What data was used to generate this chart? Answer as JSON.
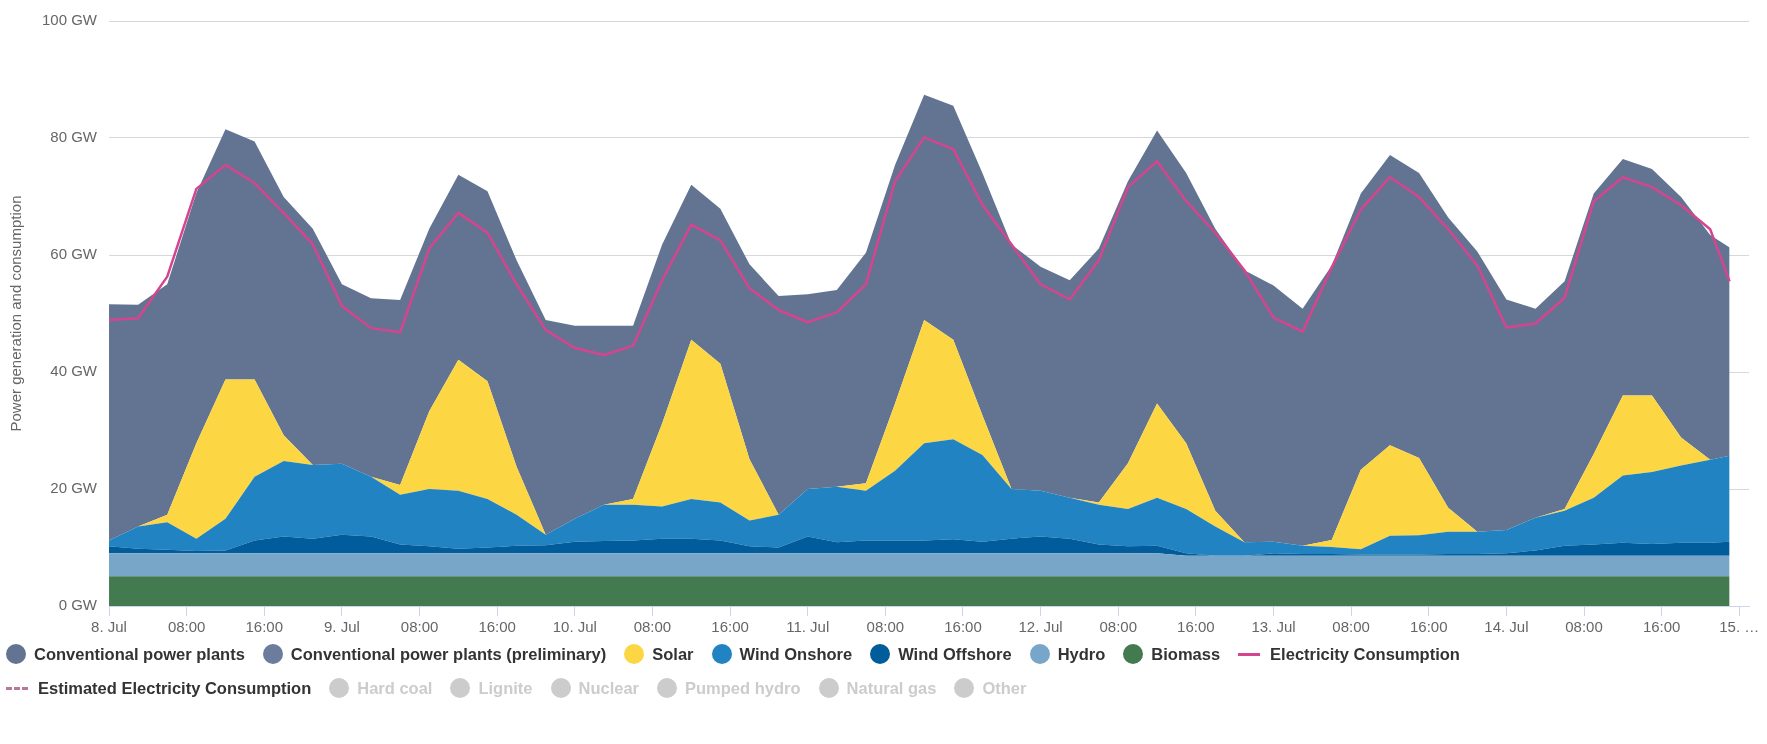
{
  "chart_data": {
    "type": "area",
    "stacked": true,
    "ylabel": "Power generation and consumption",
    "grid": "y",
    "legend": "bottom",
    "marker": "none",
    "x": [
      "--07-08T00:00",
      "--07-08T03:00",
      "--07-08T06:00",
      "--07-08T09:00",
      "--07-08T12:00",
      "--07-08T15:00",
      "--07-08T18:00",
      "--07-08T21:00",
      "--07-09T00:00",
      "--07-09T03:00",
      "--07-09T06:00",
      "--07-09T09:00",
      "--07-09T12:00",
      "--07-09T15:00",
      "--07-09T18:00",
      "--07-09T21:00",
      "--07-10T00:00",
      "--07-10T03:00",
      "--07-10T06:00",
      "--07-10T09:00",
      "--07-10T12:00",
      "--07-10T15:00",
      "--07-10T18:00",
      "--07-10T21:00",
      "--07-11T00:00",
      "--07-11T03:00",
      "--07-11T06:00",
      "--07-11T09:00",
      "--07-11T12:00",
      "--07-11T15:00",
      "--07-11T18:00",
      "--07-11T21:00",
      "--07-12T00:00",
      "--07-12T03:00",
      "--07-12T06:00",
      "--07-12T09:00",
      "--07-12T12:00",
      "--07-12T15:00",
      "--07-12T18:00",
      "--07-12T21:00",
      "--07-13T00:00",
      "--07-13T03:00",
      "--07-13T06:00",
      "--07-13T09:00",
      "--07-13T12:00",
      "--07-13T15:00",
      "--07-13T18:00",
      "--07-13T21:00",
      "--07-14T00:00",
      "--07-14T03:00",
      "--07-14T06:00",
      "--07-14T09:00",
      "--07-14T12:00",
      "--07-14T15:00",
      "--07-14T18:00",
      "--07-14T21:00",
      "--07-14T23:00"
    ],
    "xlim": [
      "--07-08T00:00",
      "--07-15T01:00"
    ],
    "xticks": [
      {
        "value": "--07-08T00:00",
        "label": "8. Jul"
      },
      {
        "value": "--07-08T08:00",
        "label": "08:00"
      },
      {
        "value": "--07-08T16:00",
        "label": "16:00"
      },
      {
        "value": "--07-09T00:00",
        "label": "9. Jul"
      },
      {
        "value": "--07-09T08:00",
        "label": "08:00"
      },
      {
        "value": "--07-09T16:00",
        "label": "16:00"
      },
      {
        "value": "--07-10T00:00",
        "label": "10. Jul"
      },
      {
        "value": "--07-10T08:00",
        "label": "08:00"
      },
      {
        "value": "--07-10T16:00",
        "label": "16:00"
      },
      {
        "value": "--07-11T00:00",
        "label": "11. Jul"
      },
      {
        "value": "--07-11T08:00",
        "label": "08:00"
      },
      {
        "value": "--07-11T16:00",
        "label": "16:00"
      },
      {
        "value": "--07-12T00:00",
        "label": "12. Jul"
      },
      {
        "value": "--07-12T08:00",
        "label": "08:00"
      },
      {
        "value": "--07-12T16:00",
        "label": "16:00"
      },
      {
        "value": "--07-13T00:00",
        "label": "13. Jul"
      },
      {
        "value": "--07-13T08:00",
        "label": "08:00"
      },
      {
        "value": "--07-13T16:00",
        "label": "16:00"
      },
      {
        "value": "--07-14T00:00",
        "label": "14. Jul"
      },
      {
        "value": "--07-14T08:00",
        "label": "08:00"
      },
      {
        "value": "--07-14T16:00",
        "label": "16:00"
      },
      {
        "value": "--07-15T00:00",
        "label": "15. …"
      }
    ],
    "ylim": [
      0,
      100
    ],
    "yticks": [
      {
        "value": 0,
        "label": "0 GW"
      },
      {
        "value": 20,
        "label": "20 GW"
      },
      {
        "value": 40,
        "label": "40 GW"
      },
      {
        "value": 60,
        "label": "60 GW"
      },
      {
        "value": 80,
        "label": "80 GW"
      },
      {
        "value": 100,
        "label": "100 GW"
      }
    ],
    "series": [
      {
        "name": "Other",
        "type": "area",
        "color": "#cccccc",
        "values": [
          null,
          null,
          null,
          null,
          null,
          null,
          null,
          null,
          null,
          null,
          null,
          null,
          null,
          null,
          null,
          null,
          null,
          null,
          null,
          null,
          null,
          null,
          null,
          null,
          null,
          null,
          null,
          null,
          null,
          null,
          null,
          null,
          null,
          null,
          null,
          null,
          null,
          null,
          null,
          null,
          null,
          null,
          null,
          null,
          null,
          null,
          null,
          null,
          null,
          null,
          null,
          null,
          null,
          null,
          null,
          null,
          null
        ]
      },
      {
        "name": "Natural gas",
        "type": "area",
        "color": "#cccccc",
        "values": [
          null,
          null,
          null,
          null,
          null,
          null,
          null,
          null,
          null,
          null,
          null,
          null,
          null,
          null,
          null,
          null,
          null,
          null,
          null,
          null,
          null,
          null,
          null,
          null,
          null,
          null,
          null,
          null,
          null,
          null,
          null,
          null,
          null,
          null,
          null,
          null,
          null,
          null,
          null,
          null,
          null,
          null,
          null,
          null,
          null,
          null,
          null,
          null,
          null,
          null,
          null,
          null,
          null,
          null,
          null,
          null,
          null
        ]
      },
      {
        "name": "Pumped hydro",
        "type": "area",
        "color": "#cccccc",
        "values": [
          null,
          null,
          null,
          null,
          null,
          null,
          null,
          null,
          null,
          null,
          null,
          null,
          null,
          null,
          null,
          null,
          null,
          null,
          null,
          null,
          null,
          null,
          null,
          null,
          null,
          null,
          null,
          null,
          null,
          null,
          null,
          null,
          null,
          null,
          null,
          null,
          null,
          null,
          null,
          null,
          null,
          null,
          null,
          null,
          null,
          null,
          null,
          null,
          null,
          null,
          null,
          null,
          null,
          null,
          null,
          null,
          null
        ]
      },
      {
        "name": "Nuclear",
        "type": "area",
        "color": "#cccccc",
        "values": [
          null,
          null,
          null,
          null,
          null,
          null,
          null,
          null,
          null,
          null,
          null,
          null,
          null,
          null,
          null,
          null,
          null,
          null,
          null,
          null,
          null,
          null,
          null,
          null,
          null,
          null,
          null,
          null,
          null,
          null,
          null,
          null,
          null,
          null,
          null,
          null,
          null,
          null,
          null,
          null,
          null,
          null,
          null,
          null,
          null,
          null,
          null,
          null,
          null,
          null,
          null,
          null,
          null,
          null,
          null,
          null,
          null
        ]
      },
      {
        "name": "Lignite",
        "type": "area",
        "color": "#cccccc",
        "values": [
          null,
          null,
          null,
          null,
          null,
          null,
          null,
          null,
          null,
          null,
          null,
          null,
          null,
          null,
          null,
          null,
          null,
          null,
          null,
          null,
          null,
          null,
          null,
          null,
          null,
          null,
          null,
          null,
          null,
          null,
          null,
          null,
          null,
          null,
          null,
          null,
          null,
          null,
          null,
          null,
          null,
          null,
          null,
          null,
          null,
          null,
          null,
          null,
          null,
          null,
          null,
          null,
          null,
          null,
          null,
          null,
          null
        ]
      },
      {
        "name": "Hard coal",
        "type": "area",
        "color": "#cccccc",
        "values": [
          null,
          null,
          null,
          null,
          null,
          null,
          null,
          null,
          null,
          null,
          null,
          null,
          null,
          null,
          null,
          null,
          null,
          null,
          null,
          null,
          null,
          null,
          null,
          null,
          null,
          null,
          null,
          null,
          null,
          null,
          null,
          null,
          null,
          null,
          null,
          null,
          null,
          null,
          null,
          null,
          null,
          null,
          null,
          null,
          null,
          null,
          null,
          null,
          null,
          null,
          null,
          null,
          null,
          null,
          null,
          null,
          null
        ]
      },
      {
        "name": "Estimated Electricity Consumption",
        "type": "line",
        "line_style": "dashed",
        "color": "#b9779e",
        "values": [
          null,
          null,
          null,
          null,
          null,
          null,
          null,
          null,
          null,
          null,
          null,
          null,
          null,
          null,
          null,
          null,
          null,
          null,
          null,
          null,
          null,
          null,
          null,
          null,
          null,
          null,
          null,
          null,
          null,
          null,
          null,
          null,
          null,
          null,
          null,
          null,
          null,
          null,
          null,
          null,
          null,
          null,
          null,
          null,
          null,
          null,
          null,
          null,
          null,
          null,
          null,
          null,
          null,
          null,
          null,
          null,
          null
        ]
      },
      {
        "name": "Electricity Consumption",
        "type": "line",
        "line_style": "solid",
        "color": "#d5458f",
        "values": [
          48.9,
          49.2,
          56.3,
          71.3,
          75.4,
          72.3,
          67.2,
          61.8,
          51.3,
          47.5,
          46.8,
          61.1,
          67.2,
          63.8,
          55.0,
          47.2,
          44.1,
          42.9,
          44.5,
          55.7,
          65.2,
          62.5,
          54.3,
          50.6,
          48.5,
          50.2,
          55.0,
          72.6,
          80.1,
          78.1,
          68.6,
          61.8,
          55.0,
          52.4,
          59.1,
          71.6,
          76.0,
          69.2,
          63.8,
          57.4,
          49.3,
          46.9,
          57.9,
          67.8,
          73.3,
          69.9,
          64.4,
          58.2,
          47.6,
          48.3,
          52.7,
          69.2,
          73.3,
          71.6,
          68.5,
          64.4,
          55.5
        ]
      },
      {
        "name": "Biomass",
        "color": "#447a50",
        "values": [
          5.1,
          5.1,
          5.1,
          5.1,
          5.1,
          5.1,
          5.1,
          5.1,
          5.1,
          5.1,
          5.1,
          5.1,
          5.1,
          5.1,
          5.1,
          5.1,
          5.1,
          5.1,
          5.1,
          5.1,
          5.1,
          5.1,
          5.1,
          5.1,
          5.1,
          5.1,
          5.1,
          5.1,
          5.1,
          5.1,
          5.1,
          5.1,
          5.1,
          5.1,
          5.1,
          5.1,
          5.1,
          5.1,
          5.1,
          5.1,
          5.1,
          5.1,
          5.1,
          5.1,
          5.1,
          5.1,
          5.1,
          5.1,
          5.1,
          5.1,
          5.1,
          5.1,
          5.1,
          5.1,
          5.1,
          5.1,
          5.1
        ]
      },
      {
        "name": "Hydro",
        "color": "#78a6c9",
        "values": [
          3.9,
          3.9,
          3.9,
          3.9,
          3.9,
          3.9,
          3.9,
          3.9,
          3.9,
          3.9,
          3.9,
          3.9,
          3.9,
          3.9,
          3.9,
          3.9,
          3.9,
          3.9,
          3.9,
          3.9,
          3.9,
          3.9,
          3.9,
          3.9,
          3.9,
          3.9,
          3.9,
          3.9,
          3.9,
          3.9,
          3.9,
          3.9,
          3.9,
          3.9,
          3.9,
          3.9,
          3.9,
          3.5,
          3.5,
          3.5,
          3.5,
          3.5,
          3.5,
          3.5,
          3.5,
          3.5,
          3.5,
          3.5,
          3.5,
          3.5,
          3.5,
          3.5,
          3.5,
          3.5,
          3.5,
          3.5,
          3.5
        ]
      },
      {
        "name": "Wind Offshore",
        "color": "#005c9b",
        "values": [
          1.2,
          0.8,
          0.6,
          0.4,
          0.5,
          2.2,
          2.9,
          2.5,
          3.2,
          2.9,
          1.5,
          1.2,
          0.8,
          1.0,
          1.3,
          1.4,
          2.0,
          2.1,
          2.2,
          2.5,
          2.5,
          2.2,
          1.2,
          1.0,
          2.9,
          1.9,
          2.2,
          2.2,
          2.2,
          2.4,
          2.0,
          2.5,
          2.9,
          2.5,
          1.5,
          1.2,
          1.3,
          0.4,
          0.0,
          0.0,
          0.4,
          0.3,
          0.3,
          0.2,
          0.2,
          0.2,
          0.3,
          0.3,
          0.4,
          0.9,
          1.7,
          1.9,
          2.2,
          2.0,
          2.2,
          2.2,
          2.4
        ]
      },
      {
        "name": "Wind Onshore",
        "color": "#2183c1",
        "values": [
          1.0,
          3.8,
          4.7,
          2.1,
          5.4,
          10.9,
          12.9,
          12.6,
          12.1,
          10.2,
          8.5,
          9.8,
          9.9,
          8.3,
          5.3,
          1.8,
          3.9,
          6.2,
          6.1,
          5.5,
          6.8,
          6.5,
          4.4,
          5.6,
          8.1,
          9.5,
          8.5,
          11.9,
          16.6,
          17.1,
          14.8,
          8.5,
          7.8,
          7.0,
          6.8,
          6.4,
          8.2,
          7.6,
          5.0,
          2.3,
          2.0,
          1.4,
          1.2,
          0.9,
          3.2,
          3.3,
          3.8,
          3.8,
          4.0,
          5.6,
          6.0,
          8.0,
          11.5,
          12.3,
          13.2,
          14.2,
          14.7
        ]
      },
      {
        "name": "Solar",
        "color": "#fdd643",
        "values": [
          0,
          0,
          1.3,
          16.3,
          23.8,
          16.6,
          4.4,
          0,
          0,
          0,
          1.7,
          13.3,
          22.4,
          20.1,
          8.2,
          0,
          0,
          0,
          1.0,
          14.2,
          27.2,
          23.7,
          10.5,
          0,
          0,
          0,
          1.3,
          11.5,
          21.1,
          17.0,
          6.8,
          0,
          0,
          0,
          0.4,
          7.8,
          16.1,
          11.2,
          2.7,
          0,
          0,
          0,
          1.2,
          13.6,
          15.5,
          13.2,
          4.1,
          0,
          0,
          0,
          0.3,
          7.5,
          13.7,
          13.1,
          4.8,
          0,
          0
        ]
      },
      {
        "name": "Conventional power plants (preliminary)",
        "color": "#6b7c9c",
        "values": [
          null,
          null,
          null,
          null,
          null,
          null,
          null,
          null,
          null,
          null,
          null,
          null,
          null,
          null,
          null,
          null,
          null,
          null,
          null,
          null,
          null,
          null,
          null,
          null,
          null,
          null,
          null,
          null,
          null,
          null,
          null,
          null,
          null,
          null,
          null,
          null,
          null,
          null,
          null,
          null,
          null,
          null,
          null,
          null,
          null,
          null,
          null,
          null,
          null,
          null,
          null,
          null,
          null,
          null,
          null,
          null,
          null
        ]
      },
      {
        "name": "Conventional power plants",
        "color": "#627491",
        "values": [
          40.4,
          37.9,
          39.4,
          42.8,
          42.8,
          40.7,
          40.7,
          40.4,
          30.7,
          30.5,
          31.6,
          31.2,
          31.6,
          32.5,
          35.3,
          36.7,
          33.0,
          30.6,
          29.6,
          30.6,
          26.5,
          26.5,
          33.3,
          37.4,
          33.3,
          33.6,
          39.4,
          40.8,
          38.5,
          40.0,
          41.4,
          41.8,
          38.3,
          37.2,
          43.4,
          48.2,
          46.7,
          46.2,
          48.2,
          46.5,
          43.8,
          40.5,
          46.9,
          47.2,
          49.6,
          48.7,
          49.6,
          47.9,
          39.4,
          35.7,
          38.9,
          44.5,
          40.4,
          38.7,
          41.1,
          38.4,
          35.6
        ]
      }
    ]
  }
}
